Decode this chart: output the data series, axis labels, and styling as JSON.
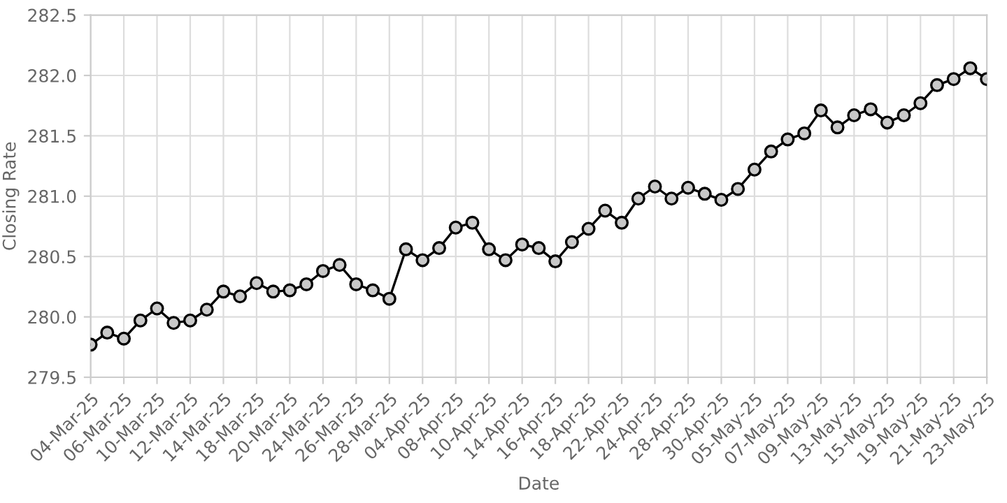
{
  "chart_data": {
    "type": "line",
    "xlabel": "Date",
    "ylabel": "Closing Rate",
    "categories": [
      "04-Mar-25",
      null,
      "06-Mar-25",
      null,
      "10-Mar-25",
      null,
      "12-Mar-25",
      null,
      "14-Mar-25",
      null,
      "18-Mar-25",
      null,
      "20-Mar-25",
      null,
      "24-Mar-25",
      null,
      "26-Mar-25",
      null,
      "28-Mar-25",
      null,
      "04-Apr-25",
      null,
      "08-Apr-25",
      null,
      "10-Apr-25",
      null,
      "14-Apr-25",
      null,
      "16-Apr-25",
      null,
      "18-Apr-25",
      null,
      "22-Apr-25",
      null,
      "24-Apr-25",
      null,
      "28-Apr-25",
      null,
      "30-Apr-25",
      null,
      "05-May-25",
      null,
      "07-May-25",
      null,
      "09-May-25",
      null,
      "13-May-25",
      null,
      "15-May-25",
      null,
      "19-May-25",
      null,
      "21-May-25",
      null,
      "23-May-25"
    ],
    "series": [
      {
        "color": "#000000",
        "values": [
          279.77,
          279.87,
          279.82,
          279.97,
          280.07,
          279.95,
          279.97,
          280.06,
          280.21,
          280.17,
          280.28,
          280.21,
          280.22,
          280.27,
          280.38,
          280.43,
          280.27,
          280.22,
          280.15,
          280.56,
          280.47,
          280.57,
          280.74,
          280.78,
          280.56,
          280.47,
          280.6,
          280.57,
          280.46,
          280.62,
          280.73,
          280.88,
          280.78,
          280.98,
          281.08,
          280.98,
          281.07,
          281.02,
          280.97,
          281.06,
          281.22,
          281.37,
          281.47,
          281.52,
          281.71,
          281.57,
          281.67,
          281.72,
          281.61,
          281.67,
          281.77,
          281.92,
          281.97,
          282.06,
          281.97
        ]
      }
    ],
    "ylim": [
      279.5,
      282.5
    ],
    "yticks": [
      279.5,
      {
        "value": 280,
        "label": "280.0"
      },
      280.5,
      {
        "value": 281,
        "label": "281.0"
      },
      281.5,
      {
        "value": 282,
        "label": "282.0"
      },
      282.5
    ],
    "grid": true,
    "marker": "circle",
    "line_style": "solid"
  }
}
